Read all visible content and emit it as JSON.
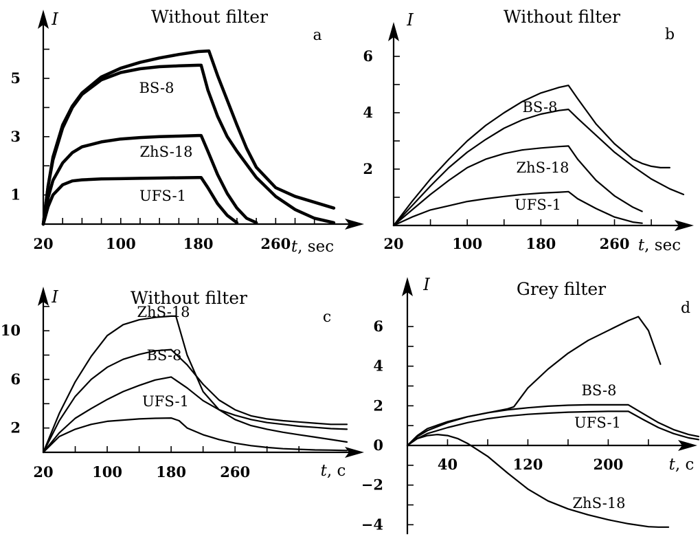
{
  "chart_data": [
    {
      "panel": "a",
      "type": "line",
      "title": "Without filter",
      "ylabel": "I",
      "xlabel_var": "t",
      "xlabel_unit": ", sec",
      "xlim": [
        20,
        330
      ],
      "ylim": [
        0,
        7
      ],
      "xticks": [
        20,
        100,
        180,
        260
      ],
      "yticks": [
        1,
        3,
        5
      ],
      "yminor": [
        0,
        2,
        4,
        6
      ],
      "xminor": [
        40,
        60,
        80,
        120,
        140,
        160,
        200,
        220,
        240,
        280,
        300
      ],
      "stroke_width": 4.5,
      "series": [
        {
          "name": "",
          "x": [
            20,
            25,
            30,
            40,
            50,
            60,
            80,
            100,
            120,
            140,
            160,
            180,
            191,
            200,
            210,
            220,
            230,
            240,
            260,
            280,
            300,
            320
          ],
          "y": [
            0,
            1.3,
            2.3,
            3.4,
            4.05,
            4.5,
            5.05,
            5.35,
            5.55,
            5.7,
            5.82,
            5.92,
            5.94,
            5.1,
            4.25,
            3.4,
            2.6,
            1.95,
            1.25,
            0.95,
            0.75,
            0.55
          ]
        },
        {
          "name": "BS-8",
          "x": [
            20,
            25,
            30,
            40,
            50,
            60,
            80,
            100,
            120,
            140,
            160,
            180,
            183,
            190,
            200,
            210,
            220,
            240,
            260,
            280,
            300,
            320
          ],
          "y": [
            0,
            1.3,
            2.2,
            3.3,
            4.0,
            4.45,
            4.95,
            5.2,
            5.33,
            5.4,
            5.43,
            5.45,
            5.45,
            4.6,
            3.7,
            3.0,
            2.5,
            1.6,
            0.95,
            0.5,
            0.2,
            0.05
          ]
        },
        {
          "name": "ZhS-18",
          "x": [
            20,
            25,
            30,
            40,
            50,
            60,
            80,
            100,
            120,
            140,
            160,
            180,
            183,
            190,
            200,
            210,
            220,
            230,
            240
          ],
          "y": [
            0,
            0.9,
            1.5,
            2.1,
            2.45,
            2.65,
            2.82,
            2.92,
            2.97,
            3.0,
            3.02,
            3.04,
            3.04,
            2.5,
            1.7,
            1.05,
            0.55,
            0.2,
            0.05
          ]
        },
        {
          "name": "UFS-1",
          "x": [
            20,
            25,
            30,
            40,
            50,
            60,
            80,
            100,
            120,
            140,
            160,
            180,
            183,
            190,
            200,
            210,
            220
          ],
          "y": [
            0,
            0.6,
            1.0,
            1.35,
            1.48,
            1.52,
            1.55,
            1.56,
            1.57,
            1.58,
            1.59,
            1.6,
            1.6,
            1.25,
            0.7,
            0.3,
            0.05
          ]
        }
      ],
      "labels": [
        {
          "text": "BS-8",
          "x": 100,
          "y": 4.5
        },
        {
          "text": "ZhS-18",
          "x": 100,
          "y": 2.25
        },
        {
          "text": "UFS-1",
          "x": 100,
          "y": 0.95
        }
      ]
    },
    {
      "panel": "b",
      "type": "line",
      "title": "Without filter",
      "ylabel": "I",
      "xlabel_var": "t",
      "xlabel_unit": ", sec",
      "xlim": [
        20,
        335
      ],
      "ylim": [
        0,
        7
      ],
      "xticks": [
        20,
        100,
        180,
        260
      ],
      "yticks": [
        2,
        4,
        6
      ],
      "yminor": [
        1,
        3,
        5
      ],
      "xminor": [
        60,
        140,
        220,
        300
      ],
      "stroke_width": 2.2,
      "series": [
        {
          "name": "",
          "x": [
            20,
            40,
            60,
            80,
            100,
            120,
            140,
            160,
            180,
            200,
            210,
            220,
            240,
            260,
            280,
            290,
            300,
            310,
            320
          ],
          "y": [
            0,
            0.85,
            1.65,
            2.35,
            3.0,
            3.55,
            4.0,
            4.4,
            4.7,
            4.9,
            4.97,
            4.5,
            3.6,
            2.9,
            2.35,
            2.2,
            2.1,
            2.05,
            2.05
          ]
        },
        {
          "name": "BS-8",
          "x": [
            20,
            40,
            60,
            80,
            100,
            120,
            140,
            160,
            180,
            200,
            210,
            220,
            240,
            260,
            280,
            300,
            320,
            335
          ],
          "y": [
            0,
            0.7,
            1.4,
            2.05,
            2.6,
            3.05,
            3.45,
            3.75,
            3.95,
            4.08,
            4.12,
            3.8,
            3.2,
            2.6,
            2.1,
            1.65,
            1.3,
            1.1
          ]
        },
        {
          "name": "ZhS-18",
          "x": [
            20,
            40,
            60,
            80,
            100,
            120,
            140,
            160,
            180,
            200,
            210,
            220,
            240,
            260,
            280,
            290
          ],
          "y": [
            0,
            0.55,
            1.1,
            1.6,
            2.05,
            2.35,
            2.55,
            2.68,
            2.75,
            2.8,
            2.82,
            2.35,
            1.6,
            1.05,
            0.65,
            0.5
          ]
        },
        {
          "name": "UFS-1",
          "x": [
            20,
            40,
            60,
            80,
            100,
            120,
            140,
            160,
            180,
            200,
            210,
            220,
            240,
            260,
            280,
            290
          ],
          "y": [
            0,
            0.3,
            0.55,
            0.7,
            0.85,
            0.95,
            1.03,
            1.1,
            1.15,
            1.18,
            1.2,
            0.95,
            0.6,
            0.3,
            0.12,
            0.08
          ]
        }
      ],
      "labels": [
        {
          "text": "BS-8",
          "x": 180,
          "y": 3.6
        },
        {
          "text": "ZhS-18",
          "x": 180,
          "y": 2.1
        },
        {
          "text": "UFS-1",
          "x": 180,
          "y": 0.45
        }
      ]
    },
    {
      "panel": "c",
      "type": "line",
      "title": "Without filter",
      "ylabel": "I",
      "xlabel_var": "t",
      "xlabel_unit": ", c",
      "xlim": [
        20,
        400
      ],
      "ylim": [
        0,
        13
      ],
      "xticks": [
        20,
        100,
        180,
        260
      ],
      "yticks": [
        2,
        6,
        10
      ],
      "yminor": [
        4,
        8,
        12
      ],
      "xminor": [
        60,
        140,
        220,
        300,
        340
      ],
      "stroke_width": 2.2,
      "series": [
        {
          "name": "",
          "x": [
            20,
            40,
            60,
            80,
            100,
            120,
            140,
            160,
            180,
            186,
            200,
            220,
            240,
            260,
            280,
            300,
            320,
            340,
            360,
            380,
            400
          ],
          "y": [
            0,
            3.2,
            5.8,
            7.9,
            9.6,
            10.5,
            10.9,
            11.1,
            11.2,
            11.2,
            8.0,
            5.0,
            3.5,
            2.7,
            2.2,
            1.9,
            1.65,
            1.45,
            1.25,
            1.05,
            0.85
          ]
        },
        {
          "name": "ZhS-18",
          "x": [
            20,
            40,
            60,
            80,
            100,
            120,
            140,
            160,
            180,
            200,
            220,
            240,
            260,
            280,
            300,
            320,
            340,
            360,
            380,
            400
          ],
          "y": [
            0,
            2.6,
            4.6,
            6.0,
            7.0,
            7.65,
            8.05,
            8.35,
            8.45,
            7.2,
            5.6,
            4.3,
            3.5,
            3.0,
            2.75,
            2.6,
            2.5,
            2.4,
            2.3,
            2.3
          ]
        },
        {
          "name": "BS-8",
          "x": [
            20,
            40,
            60,
            80,
            100,
            120,
            140,
            160,
            180,
            200,
            220,
            240,
            260,
            280,
            300,
            320,
            340,
            360,
            380,
            400
          ],
          "y": [
            0,
            1.6,
            2.8,
            3.6,
            4.35,
            5.0,
            5.5,
            5.95,
            6.2,
            5.3,
            4.25,
            3.5,
            3.05,
            2.7,
            2.45,
            2.3,
            2.15,
            2.05,
            1.95,
            1.9
          ]
        },
        {
          "name": "UFS-1",
          "x": [
            20,
            40,
            60,
            80,
            100,
            120,
            140,
            160,
            180,
            190,
            200,
            220,
            240,
            260,
            280,
            300,
            320,
            340,
            360,
            380,
            400
          ],
          "y": [
            0,
            1.3,
            1.9,
            2.3,
            2.55,
            2.65,
            2.75,
            2.8,
            2.82,
            2.6,
            2.0,
            1.45,
            1.05,
            0.75,
            0.55,
            0.4,
            0.3,
            0.25,
            0.2,
            0.18,
            0.15
          ]
        }
      ],
      "labels": [
        {
          "text": "ZhS-18",
          "x": 150,
          "y": 9.65
        },
        {
          "text": "BS-8",
          "x": 150,
          "y": 7.2
        },
        {
          "text": "UFS-1",
          "x": 150,
          "y": 4.9
        }
      ]
    },
    {
      "panel": "d",
      "type": "line",
      "title": "Grey filter",
      "ylabel": "I",
      "xlabel_var": "t",
      "xlabel_unit": ", c",
      "xlim": [
        0,
        290
      ],
      "ylim": [
        -4.2,
        7
      ],
      "xticks": [
        40,
        120,
        200
      ],
      "yticks": [
        6,
        4,
        2,
        0,
        -2,
        -4
      ],
      "ytick_labels": [
        "6",
        "4",
        "2",
        "0",
        "−2",
        "−4"
      ],
      "yminor": [
        5,
        3,
        1,
        -1,
        -3
      ],
      "xminor": [
        80,
        160,
        240
      ],
      "stroke_width": 2.2,
      "series": [
        {
          "name": "BS-8",
          "x": [
            0,
            10,
            20,
            40,
            60,
            80,
            100,
            106,
            120,
            140,
            160,
            180,
            200,
            220,
            230,
            240,
            252
          ],
          "y": [
            0,
            0.5,
            0.85,
            1.2,
            1.45,
            1.65,
            1.85,
            1.95,
            2.9,
            3.85,
            4.65,
            5.3,
            5.8,
            6.3,
            6.5,
            5.8,
            4.1
          ]
        },
        {
          "name": "",
          "x": [
            0,
            10,
            20,
            40,
            60,
            80,
            100,
            120,
            140,
            160,
            180,
            200,
            220,
            235,
            250,
            265,
            280,
            290
          ],
          "y": [
            0,
            0.45,
            0.75,
            1.15,
            1.45,
            1.65,
            1.8,
            1.9,
            1.98,
            2.03,
            2.05,
            2.05,
            2.05,
            1.6,
            1.15,
            0.8,
            0.55,
            0.45
          ]
        },
        {
          "name": "UFS-1",
          "x": [
            0,
            10,
            20,
            40,
            60,
            80,
            100,
            120,
            140,
            160,
            180,
            200,
            220,
            235,
            250,
            265,
            280,
            290
          ],
          "y": [
            0,
            0.35,
            0.6,
            0.9,
            1.15,
            1.35,
            1.48,
            1.57,
            1.63,
            1.68,
            1.7,
            1.72,
            1.72,
            1.3,
            0.9,
            0.6,
            0.38,
            0.3
          ]
        },
        {
          "name": "ZhS-18",
          "x": [
            0,
            10,
            20,
            30,
            40,
            50,
            60,
            80,
            100,
            120,
            140,
            160,
            180,
            200,
            220,
            240,
            250,
            260
          ],
          "y": [
            0,
            0.35,
            0.5,
            0.55,
            0.5,
            0.35,
            0.1,
            -0.55,
            -1.4,
            -2.2,
            -2.8,
            -3.2,
            -3.5,
            -3.75,
            -3.95,
            -4.1,
            -4.12,
            -4.12
          ]
        }
      ],
      "labels": [
        {
          "text": "BS-8",
          "x": 145,
          "y": 2.75
        },
        {
          "text": "UFS-1",
          "x": 145,
          "y": 0.9
        },
        {
          "text": "ZhS-18",
          "x": 150,
          "y": -3.1
        }
      ]
    }
  ]
}
